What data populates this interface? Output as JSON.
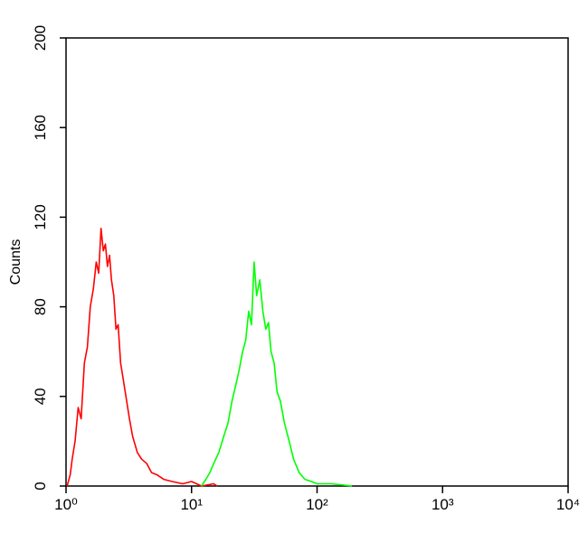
{
  "chart_data": {
    "type": "line",
    "y_label": "Counts",
    "xscale": "log",
    "xlim": [
      1,
      10000
    ],
    "xticks": [
      {
        "value": 1,
        "label": "10⁰"
      },
      {
        "value": 10,
        "label": "10¹"
      },
      {
        "value": 100,
        "label": "10²"
      },
      {
        "value": 1000,
        "label": "10³"
      },
      {
        "value": 10000,
        "label": "10⁴"
      }
    ],
    "ylim": [
      0,
      200
    ],
    "yticks": [
      0,
      40,
      80,
      120,
      160,
      200
    ],
    "series": [
      {
        "color": "#ff0000",
        "x": [
          1.02,
          1.08,
          1.12,
          1.18,
          1.25,
          1.32,
          1.4,
          1.48,
          1.56,
          1.65,
          1.74,
          1.82,
          1.9,
          1.98,
          2.06,
          2.14,
          2.22,
          2.3,
          2.4,
          2.5,
          2.6,
          2.72,
          2.85,
          3.0,
          3.2,
          3.4,
          3.7,
          4.0,
          4.4,
          4.8,
          5.3,
          6,
          7,
          8.5,
          10,
          12,
          15,
          16
        ],
        "values": [
          0,
          5,
          12,
          20,
          35,
          30,
          55,
          62,
          80,
          88,
          100,
          95,
          115,
          105,
          108,
          98,
          103,
          92,
          85,
          70,
          72,
          55,
          48,
          40,
          30,
          22,
          15,
          12,
          10,
          6,
          5,
          3,
          2,
          1,
          2,
          0,
          1,
          0
        ]
      },
      {
        "color": "#00ff00",
        "x": [
          12,
          13,
          14,
          15,
          16.5,
          18,
          19.5,
          21,
          22.5,
          24,
          25.5,
          27,
          28.5,
          30,
          31.5,
          33,
          35,
          37,
          39,
          41,
          43,
          45.5,
          48,
          51,
          55,
          60,
          65,
          72,
          80,
          90,
          100,
          130,
          190
        ],
        "values": [
          0,
          3,
          6,
          10,
          15,
          22,
          28,
          38,
          45,
          52,
          60,
          65,
          78,
          72,
          100,
          85,
          92,
          78,
          70,
          73,
          60,
          55,
          42,
          38,
          28,
          20,
          12,
          6,
          3,
          2,
          1,
          1,
          0
        ]
      }
    ]
  }
}
